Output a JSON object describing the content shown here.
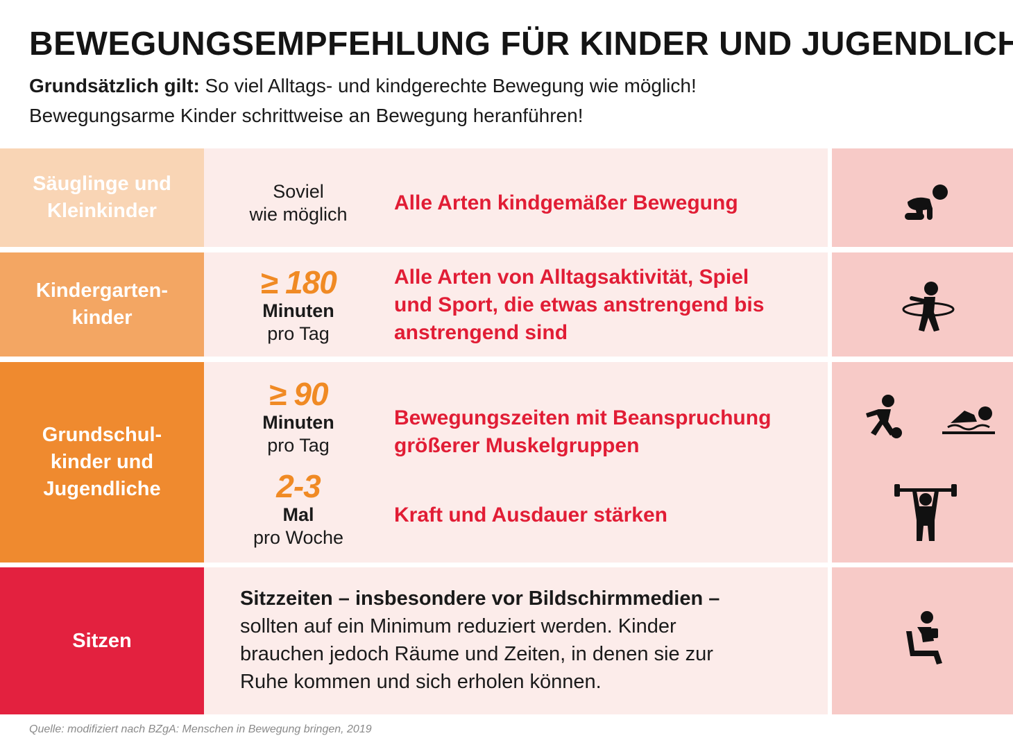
{
  "header": {
    "title": "BEWEGUNGSEMPFEHLUNG FÜR KINDER UND JUGENDLICHE",
    "intro_lead": "Grundsätzlich gilt:",
    "intro_rest": " So viel Alltags- und kindgerechte Bewegung wie möglich!",
    "intro_line2": "Bewegungsarme Kinder schrittweise an Bewegung heranführen!"
  },
  "colors": {
    "infants": "#f9d5b5",
    "kindergarten": "#f3a663",
    "school": "#ef8a2f",
    "sitting": "#e3213f",
    "middle_bg": "#fcecea",
    "icon_bg": "#f7cac7",
    "accent_red": "#e11d35",
    "accent_orange": "#f08a24"
  },
  "rows": {
    "infants": {
      "label_line1": "Säuglinge und",
      "label_line2": "Kleinkinder",
      "amount_line1": "Soviel",
      "amount_line2": "wie möglich",
      "recommendation": "Alle Arten kindgemäßer Bewegung",
      "icon": "crawling-baby-icon"
    },
    "kindergarten": {
      "label_line1": "Kindergarten-",
      "label_line2": "kinder",
      "amount_value": "≥ 180",
      "amount_unit": "Minuten",
      "amount_per": "pro Tag",
      "rec_line1": "Alle Arten von Alltagsaktivität, Spiel",
      "rec_line2": "und Sport, die etwas anstrengend bis",
      "rec_line3": "anstrengend sind",
      "icon": "hula-hoop-icon"
    },
    "school": {
      "label_line1": "Grundschul-",
      "label_line2": "kinder und",
      "label_line3": "Jugendliche",
      "amount1_value": "≥ 90",
      "amount1_unit": "Minuten",
      "amount1_per": "pro Tag",
      "rec1_line1": "Bewegungszeiten mit Beanspruchung",
      "rec1_line2": "größerer Muskelgruppen",
      "amount2_value": "2-3",
      "amount2_unit": "Mal",
      "amount2_per": "pro Woche",
      "rec2": "Kraft und Ausdauer stärken",
      "icons": [
        "soccer-runner-icon",
        "swimmer-icon",
        "weightlifter-icon"
      ]
    },
    "sitting": {
      "label": "Sitzen",
      "text_bold": "Sitzzeiten – insbesondere vor Bildschirmmedien –",
      "text_line2": "sollten auf ein Minimum reduziert werden. Kinder",
      "text_line3": "brauchen jedoch Räume und Zeiten, in denen sie zur",
      "text_line4": "Ruhe kommen und sich erholen können.",
      "icon": "sitting-phone-icon"
    }
  },
  "footer": {
    "source": "Quelle: modifiziert nach BZgA: Menschen in Bewegung bringen, 2019"
  }
}
